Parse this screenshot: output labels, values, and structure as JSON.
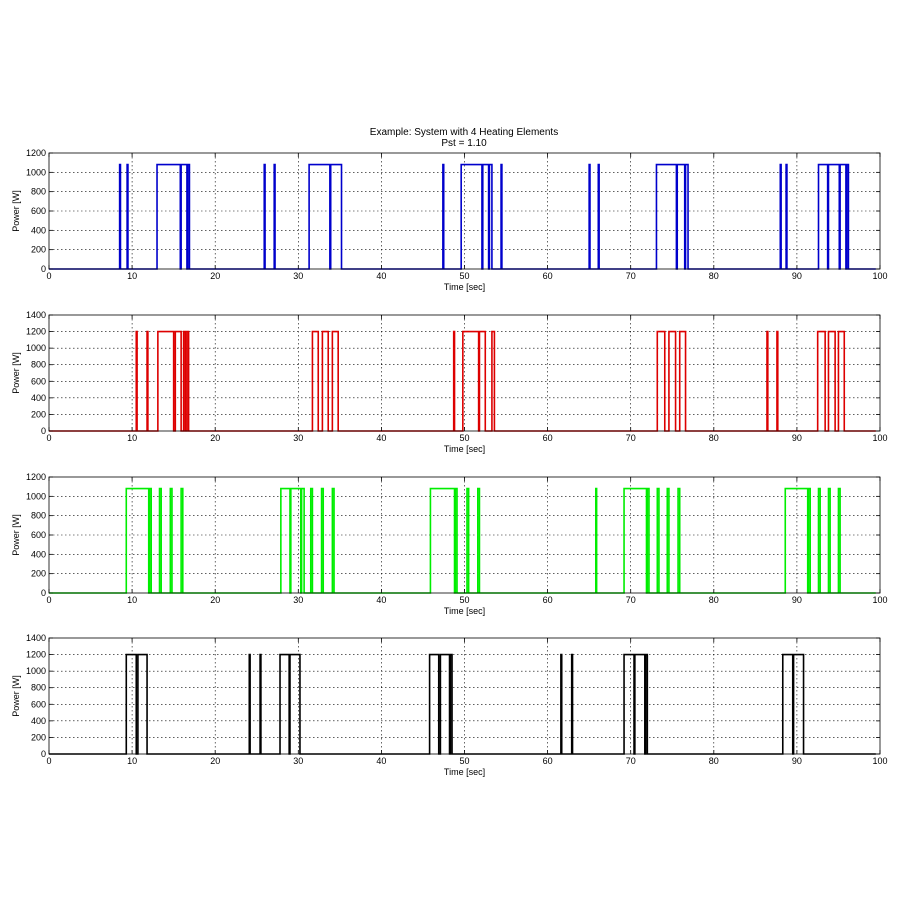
{
  "title": "Example: System with 4 Heating Elements",
  "subtitle": "Pst = 1.10",
  "chart_data": [
    {
      "type": "line",
      "color": "#0000cc",
      "xlabel": "Time [sec]",
      "ylabel": "Power [W]",
      "xlim": [
        0,
        100
      ],
      "ylim": [
        0,
        1200
      ],
      "xticks": [
        0,
        10,
        20,
        30,
        40,
        50,
        60,
        70,
        80,
        90,
        100
      ],
      "yticks": [
        0,
        200,
        400,
        600,
        800,
        1000,
        1200
      ],
      "grid": true,
      "level": 1080,
      "pulses": [
        [
          8.5,
          8.6
        ],
        [
          9.4,
          9.5
        ],
        [
          13.0,
          15.8
        ],
        [
          15.9,
          16.6
        ],
        [
          16.7,
          16.9
        ],
        [
          25.9,
          26.0
        ],
        [
          27.1,
          27.2
        ],
        [
          31.3,
          33.8
        ],
        [
          33.9,
          35.2
        ],
        [
          47.4,
          47.5
        ],
        [
          49.6,
          52.1
        ],
        [
          52.2,
          52.9
        ],
        [
          53.0,
          53.3
        ],
        [
          54.4,
          54.5
        ],
        [
          65.0,
          65.1
        ],
        [
          66.1,
          66.2
        ],
        [
          73.1,
          75.5
        ],
        [
          75.6,
          76.5
        ],
        [
          76.6,
          76.9
        ],
        [
          88.0,
          88.1
        ],
        [
          88.7,
          88.8
        ],
        [
          92.6,
          93.7
        ],
        [
          93.8,
          95.1
        ],
        [
          95.2,
          95.9
        ],
        [
          96.0,
          96.2
        ]
      ]
    },
    {
      "type": "line",
      "color": "#dd0000",
      "xlabel": "Time [sec]",
      "ylabel": "Power [W]",
      "xlim": [
        0,
        100
      ],
      "ylim": [
        0,
        1400
      ],
      "xticks": [
        0,
        10,
        20,
        30,
        40,
        50,
        60,
        70,
        80,
        90,
        100
      ],
      "yticks": [
        0,
        200,
        400,
        600,
        800,
        1000,
        1200,
        1400
      ],
      "grid": true,
      "level": 1200,
      "pulses": [
        [
          10.5,
          10.6
        ],
        [
          11.8,
          11.9
        ],
        [
          13.1,
          15.0
        ],
        [
          15.2,
          15.9
        ],
        [
          16.2,
          16.4
        ],
        [
          16.6,
          16.8
        ],
        [
          31.7,
          32.4
        ],
        [
          32.9,
          33.6
        ],
        [
          34.1,
          34.8
        ],
        [
          48.7,
          48.8
        ],
        [
          49.8,
          51.7
        ],
        [
          51.8,
          52.5
        ],
        [
          53.3,
          53.6
        ],
        [
          73.2,
          74.1
        ],
        [
          74.6,
          75.4
        ],
        [
          75.9,
          76.6
        ],
        [
          86.4,
          86.5
        ],
        [
          87.6,
          87.7
        ],
        [
          92.5,
          93.4
        ],
        [
          93.8,
          94.6
        ],
        [
          95.0,
          95.7
        ]
      ]
    },
    {
      "type": "line",
      "color": "#00ee00",
      "xlabel": "Time [sec]",
      "ylabel": "Power [W]",
      "xlim": [
        0,
        100
      ],
      "ylim": [
        0,
        1200
      ],
      "xticks": [
        0,
        10,
        20,
        30,
        40,
        50,
        60,
        70,
        80,
        90,
        100
      ],
      "yticks": [
        0,
        200,
        400,
        600,
        800,
        1000,
        1200
      ],
      "grid": true,
      "level": 1080,
      "pulses": [
        [
          9.3,
          12.0
        ],
        [
          12.1,
          12.3
        ],
        [
          13.3,
          13.5
        ],
        [
          14.6,
          14.8
        ],
        [
          15.9,
          16.1
        ],
        [
          27.9,
          29.0
        ],
        [
          29.1,
          30.3
        ],
        [
          30.4,
          30.7
        ],
        [
          31.5,
          31.7
        ],
        [
          32.8,
          33.0
        ],
        [
          34.1,
          34.3
        ],
        [
          45.9,
          48.8
        ],
        [
          48.9,
          49.1
        ],
        [
          50.3,
          50.5
        ],
        [
          51.6,
          51.8
        ],
        [
          65.8,
          65.9
        ],
        [
          69.2,
          71.9
        ],
        [
          72.0,
          72.2
        ],
        [
          73.2,
          73.4
        ],
        [
          74.4,
          74.6
        ],
        [
          75.7,
          75.9
        ],
        [
          88.6,
          91.3
        ],
        [
          91.4,
          91.6
        ],
        [
          92.6,
          92.8
        ],
        [
          93.8,
          94.0
        ],
        [
          95.0,
          95.2
        ]
      ]
    },
    {
      "type": "line",
      "color": "#000000",
      "xlabel": "Time [sec]",
      "ylabel": "Power [W]",
      "xlim": [
        0,
        100
      ],
      "ylim": [
        0,
        1400
      ],
      "xticks": [
        0,
        10,
        20,
        30,
        40,
        50,
        60,
        70,
        80,
        90,
        100
      ],
      "yticks": [
        0,
        200,
        400,
        600,
        800,
        1000,
        1200,
        1400
      ],
      "grid": true,
      "level": 1200,
      "pulses": [
        [
          9.3,
          10.5
        ],
        [
          10.7,
          11.8
        ],
        [
          24.1,
          24.2
        ],
        [
          25.4,
          25.5
        ],
        [
          27.8,
          28.9
        ],
        [
          29.0,
          30.2
        ],
        [
          45.8,
          46.9
        ],
        [
          47.1,
          48.2
        ],
        [
          48.3,
          48.5
        ],
        [
          61.6,
          61.7
        ],
        [
          62.9,
          63.0
        ],
        [
          69.2,
          70.4
        ],
        [
          70.5,
          71.7
        ],
        [
          71.8,
          72.0
        ],
        [
          88.3,
          89.5
        ],
        [
          89.6,
          90.8
        ]
      ]
    }
  ]
}
